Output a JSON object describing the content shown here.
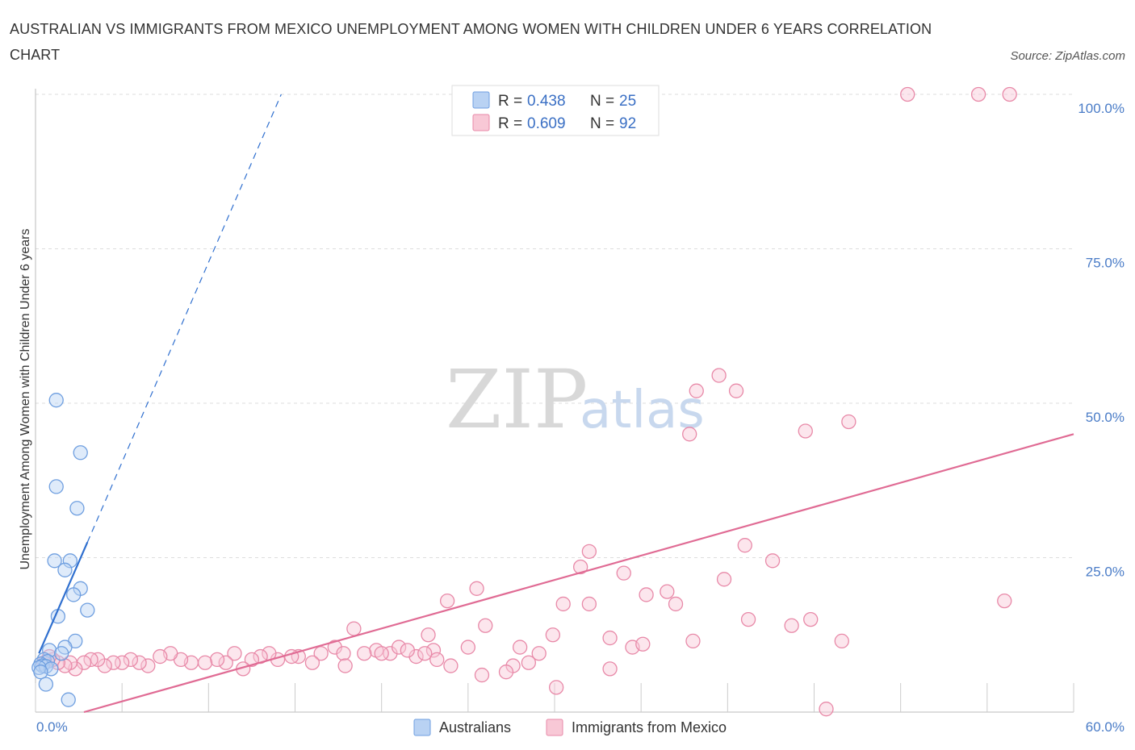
{
  "title": "AUSTRALIAN VS IMMIGRANTS FROM MEXICO UNEMPLOYMENT AMONG WOMEN WITH CHILDREN UNDER 6 YEARS CORRELATION CHART",
  "source": "Source: ZipAtlas.com",
  "watermark": {
    "zip": "ZIP",
    "atlas": "atlas"
  },
  "colors": {
    "blue": "#6f9fe0",
    "blue_fill": "#b9d2f3",
    "blue_line": "#2f6fcf",
    "pink": "#e889a8",
    "pink_fill": "#f8c8d6",
    "pink_line": "#e06b94",
    "grid": "#dddddd",
    "tick_text": "#4a7cc7"
  },
  "chart_data": {
    "type": "scatter",
    "title": "AUSTRALIAN VS IMMIGRANTS FROM MEXICO UNEMPLOYMENT AMONG WOMEN WITH CHILDREN UNDER 6 YEARS CORRELATION CHART",
    "xlabel": "",
    "ylabel": "Unemployment Among Women with Children Under 6 years",
    "xlim": [
      0,
      60
    ],
    "ylim": [
      0,
      100
    ],
    "x_tick_labels": [
      "0.0%",
      "60.0%"
    ],
    "y_ticks": [
      25,
      50,
      75,
      100
    ],
    "y_tick_labels": [
      "25.0%",
      "50.0%",
      "75.0%",
      "100.0%"
    ],
    "grid": true,
    "legend_position": "top-center",
    "legend": [
      {
        "series": "Australians",
        "r_label": "R =",
        "r": "0.438",
        "n_label": "N =",
        "n": "25"
      },
      {
        "series": "Immigrants from Mexico",
        "r_label": "R =",
        "r": "0.609",
        "n_label": "N =",
        "n": "92"
      }
    ],
    "series": [
      {
        "name": "Australians",
        "color": "#6f9fe0",
        "trend": {
          "x0": 0.2,
          "y0": 9.5,
          "x1": 3.0,
          "y1": 27.5,
          "dash_x1": 14.2,
          "dash_y1": 100
        },
        "points": [
          [
            1.2,
            50.5
          ],
          [
            2.6,
            42.0
          ],
          [
            1.2,
            36.5
          ],
          [
            2.4,
            33.0
          ],
          [
            1.1,
            24.5
          ],
          [
            2.0,
            24.5
          ],
          [
            1.7,
            23.0
          ],
          [
            2.6,
            20.0
          ],
          [
            2.2,
            19.0
          ],
          [
            3.0,
            16.5
          ],
          [
            1.3,
            15.5
          ],
          [
            2.3,
            11.5
          ],
          [
            0.8,
            10.0
          ],
          [
            1.7,
            10.5
          ],
          [
            1.5,
            9.5
          ],
          [
            0.5,
            8.5
          ],
          [
            0.7,
            8.2
          ],
          [
            0.3,
            7.8
          ],
          [
            0.4,
            7.5
          ],
          [
            0.6,
            7.4
          ],
          [
            0.9,
            7.0
          ],
          [
            0.2,
            7.2
          ],
          [
            0.3,
            6.5
          ],
          [
            0.6,
            4.5
          ],
          [
            1.9,
            2.0
          ]
        ]
      },
      {
        "name": "Immigrants from Mexico",
        "color": "#e889a8",
        "trend": {
          "x0": 2.8,
          "y0": 0.0,
          "x1": 60.0,
          "y1": 45.0
        },
        "points": [
          [
            50.4,
            100
          ],
          [
            54.5,
            100
          ],
          [
            56.3,
            100
          ],
          [
            39.5,
            54.5
          ],
          [
            38.2,
            52.0
          ],
          [
            40.5,
            52.0
          ],
          [
            37.8,
            45.0
          ],
          [
            44.5,
            45.5
          ],
          [
            47.0,
            47.0
          ],
          [
            32.0,
            26.0
          ],
          [
            31.5,
            23.5
          ],
          [
            41.0,
            27.0
          ],
          [
            42.6,
            24.5
          ],
          [
            34.0,
            22.5
          ],
          [
            39.8,
            21.5
          ],
          [
            25.5,
            20.0
          ],
          [
            23.8,
            18.0
          ],
          [
            30.5,
            17.5
          ],
          [
            32.0,
            17.5
          ],
          [
            35.3,
            19.0
          ],
          [
            36.5,
            19.5
          ],
          [
            37.0,
            17.5
          ],
          [
            56.0,
            18.0
          ],
          [
            41.2,
            15.0
          ],
          [
            43.7,
            14.0
          ],
          [
            44.8,
            15.0
          ],
          [
            46.6,
            11.5
          ],
          [
            38.0,
            11.5
          ],
          [
            33.2,
            12.0
          ],
          [
            34.5,
            10.5
          ],
          [
            35.1,
            11.0
          ],
          [
            26.0,
            14.0
          ],
          [
            29.9,
            12.5
          ],
          [
            22.7,
            12.5
          ],
          [
            23.0,
            10.0
          ],
          [
            25.0,
            10.5
          ],
          [
            28.0,
            10.5
          ],
          [
            29.1,
            9.5
          ],
          [
            28.5,
            8.0
          ],
          [
            27.6,
            7.5
          ],
          [
            18.4,
            13.5
          ],
          [
            17.3,
            10.5
          ],
          [
            19.7,
            10.0
          ],
          [
            20.5,
            9.5
          ],
          [
            21.0,
            10.5
          ],
          [
            22.0,
            9.0
          ],
          [
            21.5,
            10.0
          ],
          [
            22.5,
            9.5
          ],
          [
            23.2,
            8.5
          ],
          [
            24.0,
            7.5
          ],
          [
            19.0,
            9.5
          ],
          [
            20.0,
            9.5
          ],
          [
            17.8,
            9.5
          ],
          [
            16.5,
            9.5
          ],
          [
            16.0,
            8.0
          ],
          [
            15.2,
            9.0
          ],
          [
            14.8,
            9.0
          ],
          [
            14.0,
            8.5
          ],
          [
            13.5,
            9.5
          ],
          [
            13.0,
            9.0
          ],
          [
            12.5,
            8.5
          ],
          [
            11.5,
            9.5
          ],
          [
            11.0,
            8.0
          ],
          [
            10.5,
            8.5
          ],
          [
            9.8,
            8.0
          ],
          [
            9.0,
            8.0
          ],
          [
            8.4,
            8.5
          ],
          [
            7.8,
            9.5
          ],
          [
            7.2,
            9.0
          ],
          [
            6.5,
            7.5
          ],
          [
            6.0,
            8.0
          ],
          [
            5.5,
            8.5
          ],
          [
            5.0,
            8.0
          ],
          [
            4.5,
            8.0
          ],
          [
            4.0,
            7.5
          ],
          [
            3.6,
            8.5
          ],
          [
            3.2,
            8.5
          ],
          [
            2.8,
            8.0
          ],
          [
            2.3,
            7.0
          ],
          [
            2.0,
            8.0
          ],
          [
            1.7,
            7.5
          ],
          [
            1.3,
            8.0
          ],
          [
            1.0,
            8.5
          ],
          [
            0.8,
            9.0
          ],
          [
            0.5,
            8.0
          ],
          [
            12.0,
            7.0
          ],
          [
            17.9,
            7.5
          ],
          [
            25.8,
            6.0
          ],
          [
            27.2,
            6.5
          ],
          [
            33.2,
            7.0
          ],
          [
            30.1,
            4.0
          ],
          [
            45.7,
            0.5
          ]
        ]
      }
    ]
  },
  "bottom_legend": [
    "Australians",
    "Immigrants from Mexico"
  ]
}
